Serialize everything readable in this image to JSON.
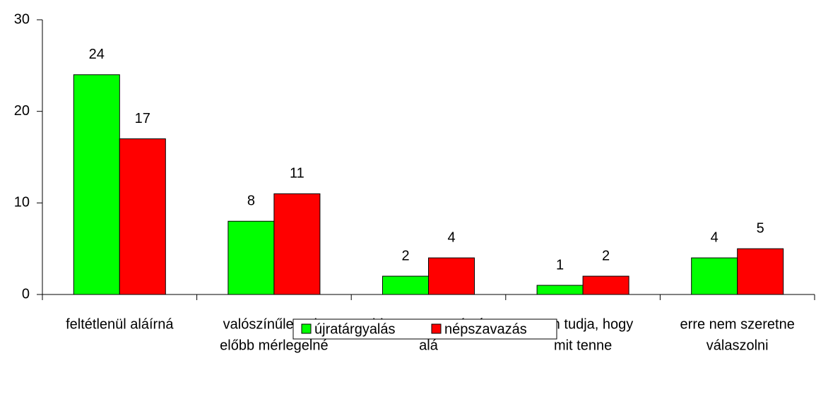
{
  "chart_data": {
    "type": "bar",
    "categories": [
      [
        "feltétlenül aláírná"
      ],
      [
        "valószínűleg, de",
        "előbb mérlegelné"
      ],
      [
        "biztosan nem írná",
        "alá"
      ],
      [
        "nem tudja, hogy",
        "mit tenne"
      ],
      [
        "erre nem szeretne",
        "válaszolni"
      ]
    ],
    "series": [
      {
        "name": "újratárgyalás",
        "color": "#00ff00",
        "values": [
          24,
          8,
          2,
          1,
          4
        ]
      },
      {
        "name": "népszavazás",
        "color": "#ff0000",
        "values": [
          17,
          11,
          4,
          2,
          5
        ]
      }
    ],
    "ylim": [
      0,
      30
    ],
    "yticks": [
      0,
      10,
      20,
      30
    ],
    "legend": "bottom"
  }
}
